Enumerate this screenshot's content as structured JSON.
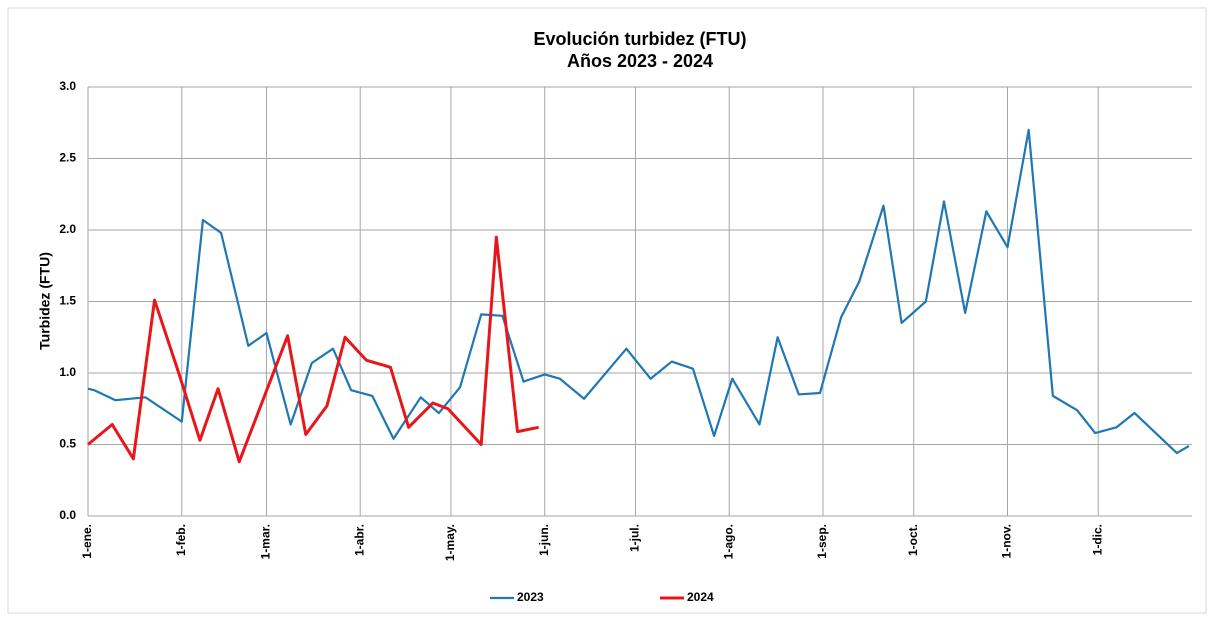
{
  "chart_data": {
    "type": "line",
    "title": "Evolución turbidez (FTU)",
    "subtitle": "Años 2023 - 2024",
    "ylabel": "Turbidez (FTU)",
    "xlim": [
      0,
      365
    ],
    "xticks": [
      {
        "value": 0,
        "label": "1-ene."
      },
      {
        "value": 31,
        "label": "1-feb."
      },
      {
        "value": 59,
        "label": "1-mar."
      },
      {
        "value": 90,
        "label": "1-abr."
      },
      {
        "value": 120,
        "label": "1-may."
      },
      {
        "value": 151,
        "label": "1-jun."
      },
      {
        "value": 181,
        "label": "1-jul."
      },
      {
        "value": 212,
        "label": "1-ago."
      },
      {
        "value": 243,
        "label": "1-sep."
      },
      {
        "value": 273,
        "label": "1-oct."
      },
      {
        "value": 304,
        "label": "1-nov."
      },
      {
        "value": 334,
        "label": "1-dic."
      }
    ],
    "ylim": [
      0,
      3
    ],
    "yticks": [
      {
        "value": 0,
        "label": "0.0"
      },
      {
        "value": 0.5,
        "label": "0.5"
      },
      {
        "value": 1,
        "label": "1.0"
      },
      {
        "value": 1.5,
        "label": "1.5"
      },
      {
        "value": 2,
        "label": "2.0"
      },
      {
        "value": 2.5,
        "label": "2.5"
      },
      {
        "value": 3,
        "label": "3.0"
      }
    ],
    "grid": true,
    "legend": "bottom",
    "series": [
      {
        "name": "2023",
        "color": "#1f77b4",
        "x": [
          0,
          2,
          9,
          19,
          31,
          38,
          44,
          53,
          59,
          67,
          74,
          81,
          87,
          94,
          101,
          110,
          116,
          123,
          130,
          137,
          144,
          151,
          156,
          164,
          178,
          186,
          193,
          200,
          207,
          213,
          222,
          228,
          235,
          242,
          249,
          255,
          263,
          269,
          277,
          283,
          290,
          297,
          304,
          311,
          319,
          327,
          333,
          340,
          346,
          353,
          360,
          364
        ],
        "values": [
          0.89,
          0.88,
          0.81,
          0.83,
          0.66,
          2.07,
          1.98,
          1.19,
          1.28,
          0.64,
          1.07,
          1.17,
          0.88,
          0.84,
          0.54,
          0.83,
          0.72,
          0.9,
          1.41,
          1.4,
          0.94,
          0.99,
          0.96,
          0.82,
          1.17,
          0.96,
          1.08,
          1.03,
          0.56,
          0.96,
          0.64,
          1.25,
          0.85,
          0.86,
          1.39,
          1.64,
          2.17,
          1.35,
          1.5,
          2.2,
          1.42,
          2.13,
          1.88,
          2.7,
          0.84,
          0.74,
          0.58,
          0.62,
          0.72,
          0.58,
          0.44,
          0.49
        ]
      },
      {
        "name": "2024",
        "color": "#e8161b",
        "x": [
          0,
          8,
          15,
          22,
          30,
          37,
          43,
          50,
          66,
          72,
          79,
          85,
          92,
          100,
          106,
          114,
          119,
          130,
          135,
          142,
          149
        ],
        "values": [
          0.5,
          0.64,
          0.4,
          1.51,
          1.0,
          0.53,
          0.89,
          0.38,
          1.26,
          0.57,
          0.77,
          1.25,
          1.09,
          1.04,
          0.62,
          0.79,
          0.75,
          0.5,
          1.95,
          0.59,
          0.62
        ]
      }
    ]
  }
}
